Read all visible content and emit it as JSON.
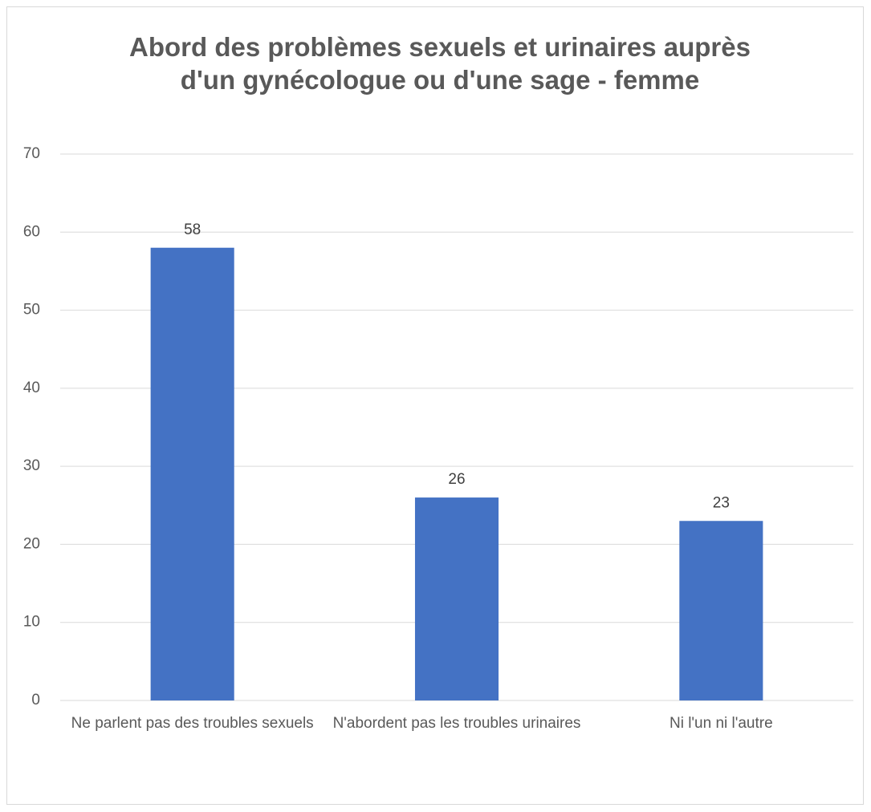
{
  "chart_data": {
    "type": "bar",
    "title": "Abord des problèmes sexuels et urinaires auprès d'un gynécologue ou d'une sage - femme",
    "categories": [
      "Ne parlent pas des troubles sexuels",
      "N'abordent pas les troubles urinaires",
      "Ni l'un ni l'autre"
    ],
    "values": [
      58,
      26,
      23
    ],
    "color": "#4472c4",
    "ylim": [
      0,
      70
    ],
    "yticks": [
      0,
      10,
      20,
      30,
      40,
      50,
      60,
      70
    ],
    "grid": true
  }
}
